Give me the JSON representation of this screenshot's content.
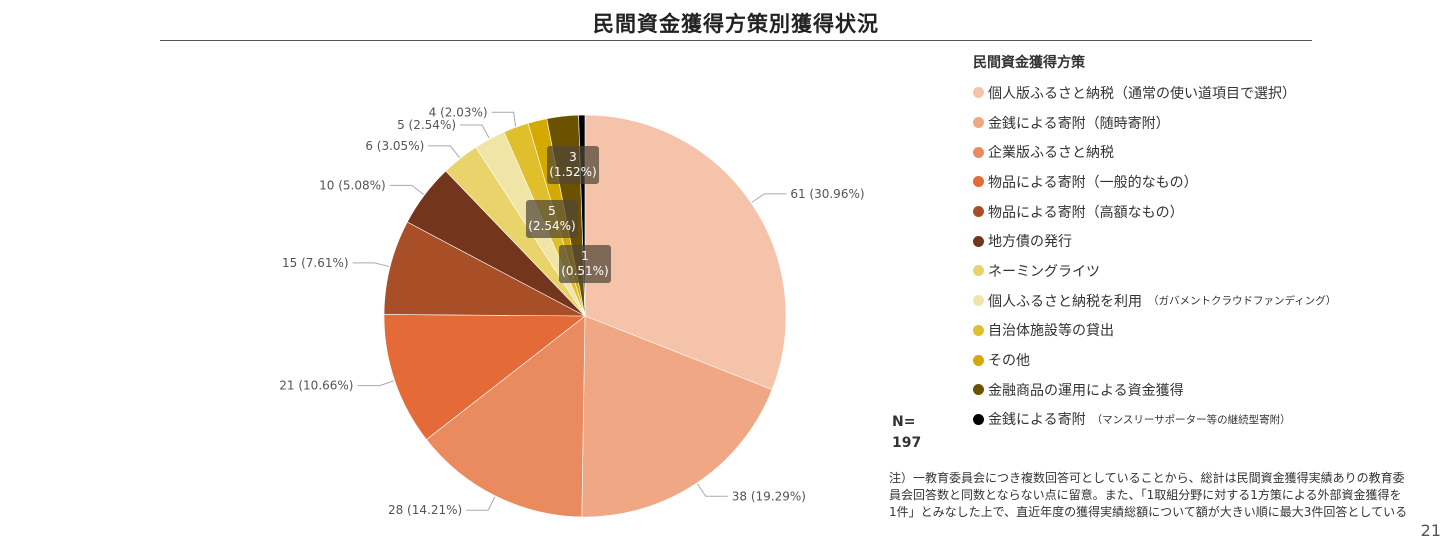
{
  "title": "民間資金獲得方策別獲得状況",
  "legend_title": "民間資金獲得方策",
  "n_label": "N=",
  "n_value": "197",
  "note": "注）一教育委員会につき複数回答可としていることから、総計は民間資金獲得実績ありの教育委員会回答数と同数とならない点に留意。また、「1取組分野に対する1方策による外部資金獲得を1件」とみなした上で、直近年度の獲得実績総額について額が大きい順に最大3件回答としている",
  "page_number": "21",
  "chart_data": {
    "type": "pie",
    "title": "民間資金獲得方策別獲得状況",
    "legend_placement": "right",
    "slices": [
      {
        "name": "個人版ふるさと納税（通常の使い道項目で選択）",
        "note": "",
        "value": 61,
        "label": "61 (30.96%)",
        "color": "#F4C3AA"
      },
      {
        "name": "金銭による寄附（随時寄附）",
        "note": "",
        "value": 38,
        "label": "38 (19.29%)",
        "color": "#F0A784"
      },
      {
        "name": "企業版ふるさと納税",
        "note": "",
        "value": 28,
        "label": "28 (14.21%)",
        "color": "#EA8B5F"
      },
      {
        "name": "物品による寄附（一般的なもの）",
        "note": "",
        "value": 21,
        "label": "21 (10.66%)",
        "color": "#E46A37"
      },
      {
        "name": "物品による寄附（高額なもの）",
        "note": "",
        "value": 15,
        "label": "15 (7.61%)",
        "color": "#A94F28"
      },
      {
        "name": "地方債の発行",
        "note": "",
        "value": 10,
        "label": "10 (5.08%)",
        "color": "#73361D"
      },
      {
        "name": "ネーミングライツ",
        "note": "",
        "value": 6,
        "label": "6 (3.05%)",
        "color": "#E9D36B"
      },
      {
        "name": "個人ふるさと納税を利用",
        "note": "（ガバメントクラウドファンディング）",
        "value": 5,
        "label": "5 (2.54%)",
        "color": "#F0E4A6"
      },
      {
        "name": "自治体施設等の貸出",
        "note": "",
        "value": 4,
        "label": "4 (2.03%)",
        "color": "#DFBF2C"
      },
      {
        "name": "その他",
        "note": "",
        "value": 3,
        "label": "3 (1.52%)",
        "color": "#D4AA00"
      },
      {
        "name": "金融商品の運用による資金獲得",
        "note": "",
        "value": 5,
        "label": "5 (2.54%)",
        "color": "#6B5200"
      },
      {
        "name": "金銭による寄附",
        "note": "（マンスリーサポーター等の継続型寄附）",
        "value": 1,
        "label": "1 (0.51%)",
        "color": "#000000"
      }
    ]
  }
}
